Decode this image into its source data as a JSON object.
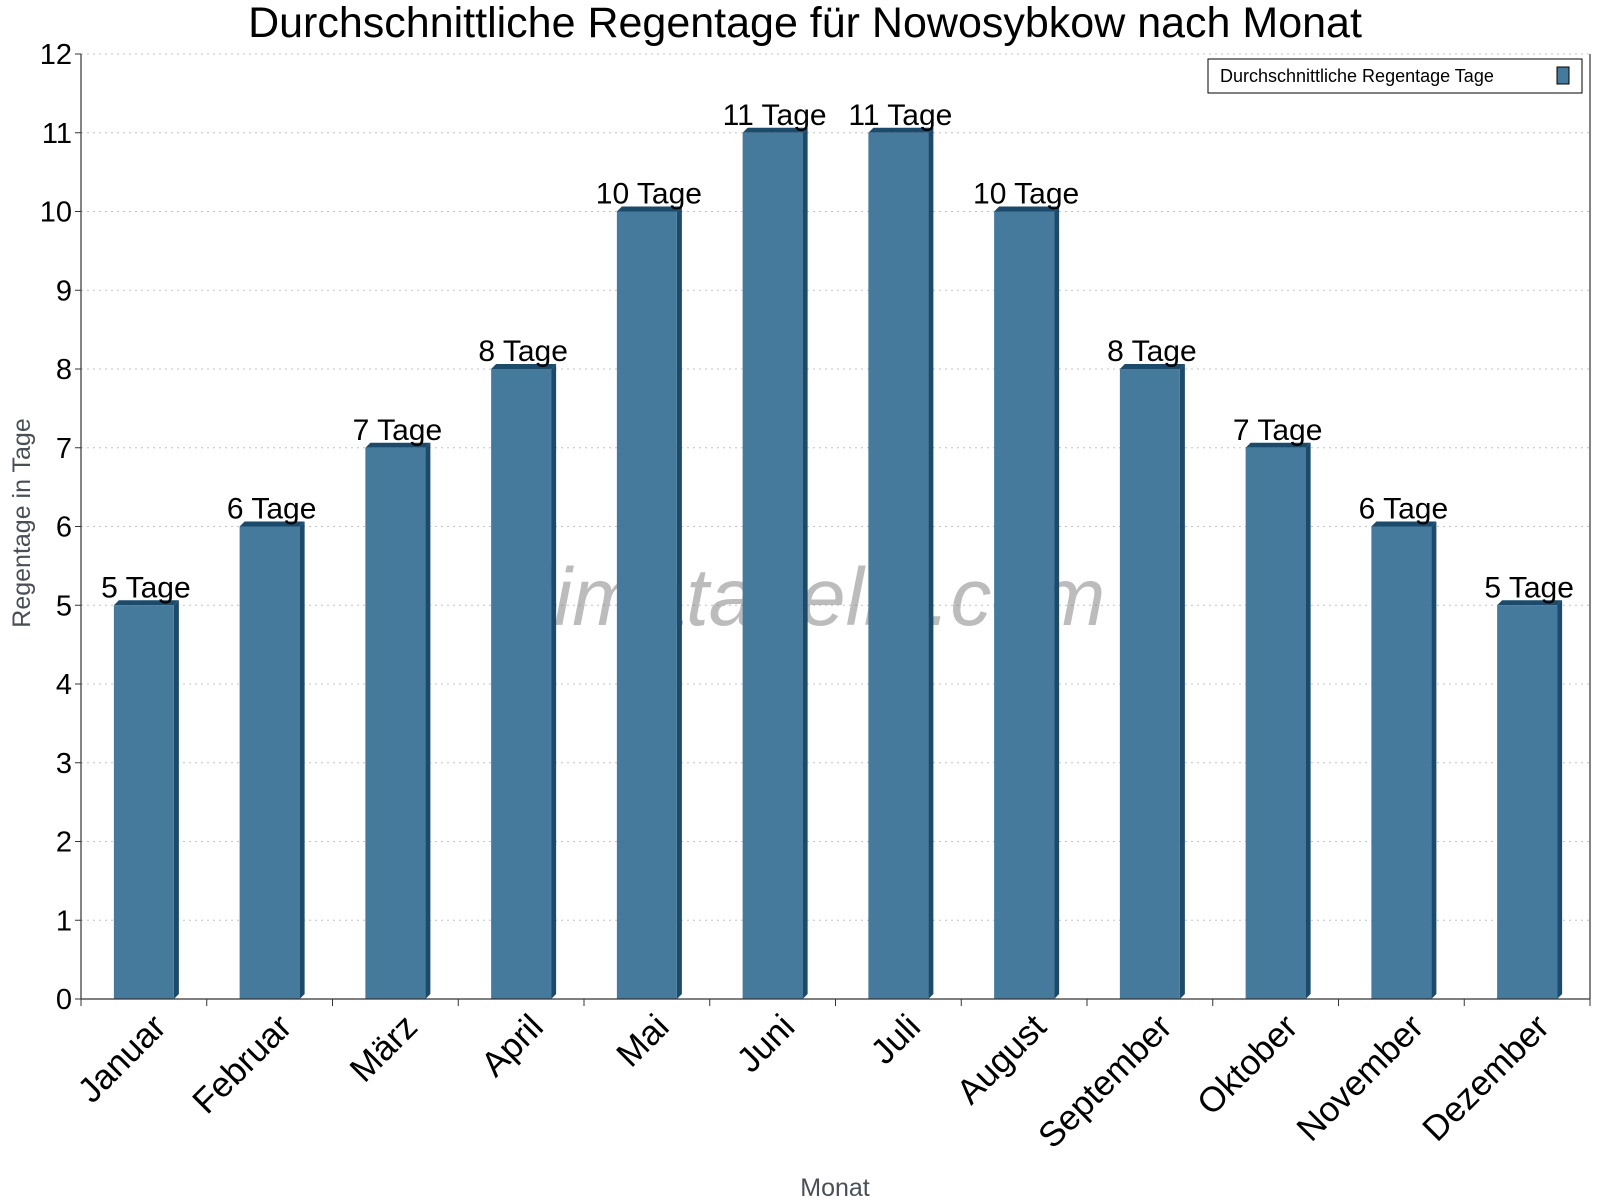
{
  "chart_data": {
    "type": "bar",
    "title": "Durchschnittliche Regentage für Nowosybkow nach Monat",
    "xlabel": "Monat",
    "ylabel": "Regentage in Tage",
    "ylim": [
      0,
      12
    ],
    "yticks": [
      "0",
      "1",
      "2",
      "3",
      "4",
      "5",
      "6",
      "7",
      "8",
      "9",
      "10",
      "11",
      "12"
    ],
    "grid": true,
    "legend_position": "top-right",
    "categories": [
      "Januar",
      "Februar",
      "März",
      "April",
      "Mai",
      "Juni",
      "Juli",
      "August",
      "September",
      "Oktober",
      "November",
      "Dezember"
    ],
    "series": [
      {
        "name": "Durchschnittliche Regentage Tage",
        "values": [
          5,
          6,
          7,
          8,
          10,
          11,
          11,
          10,
          8,
          7,
          6,
          5
        ],
        "color": "#457a9c",
        "side_color": "#1c4a6b"
      }
    ],
    "data_labels": [
      "5 Tage",
      "6 Tage",
      "7 Tage",
      "8 Tage",
      "10 Tage",
      "11 Tage",
      "11 Tage",
      "10 Tage",
      "8 Tage",
      "7 Tage",
      "6 Tage",
      "5 Tage"
    ]
  },
  "watermark": "klimatabelle.com"
}
